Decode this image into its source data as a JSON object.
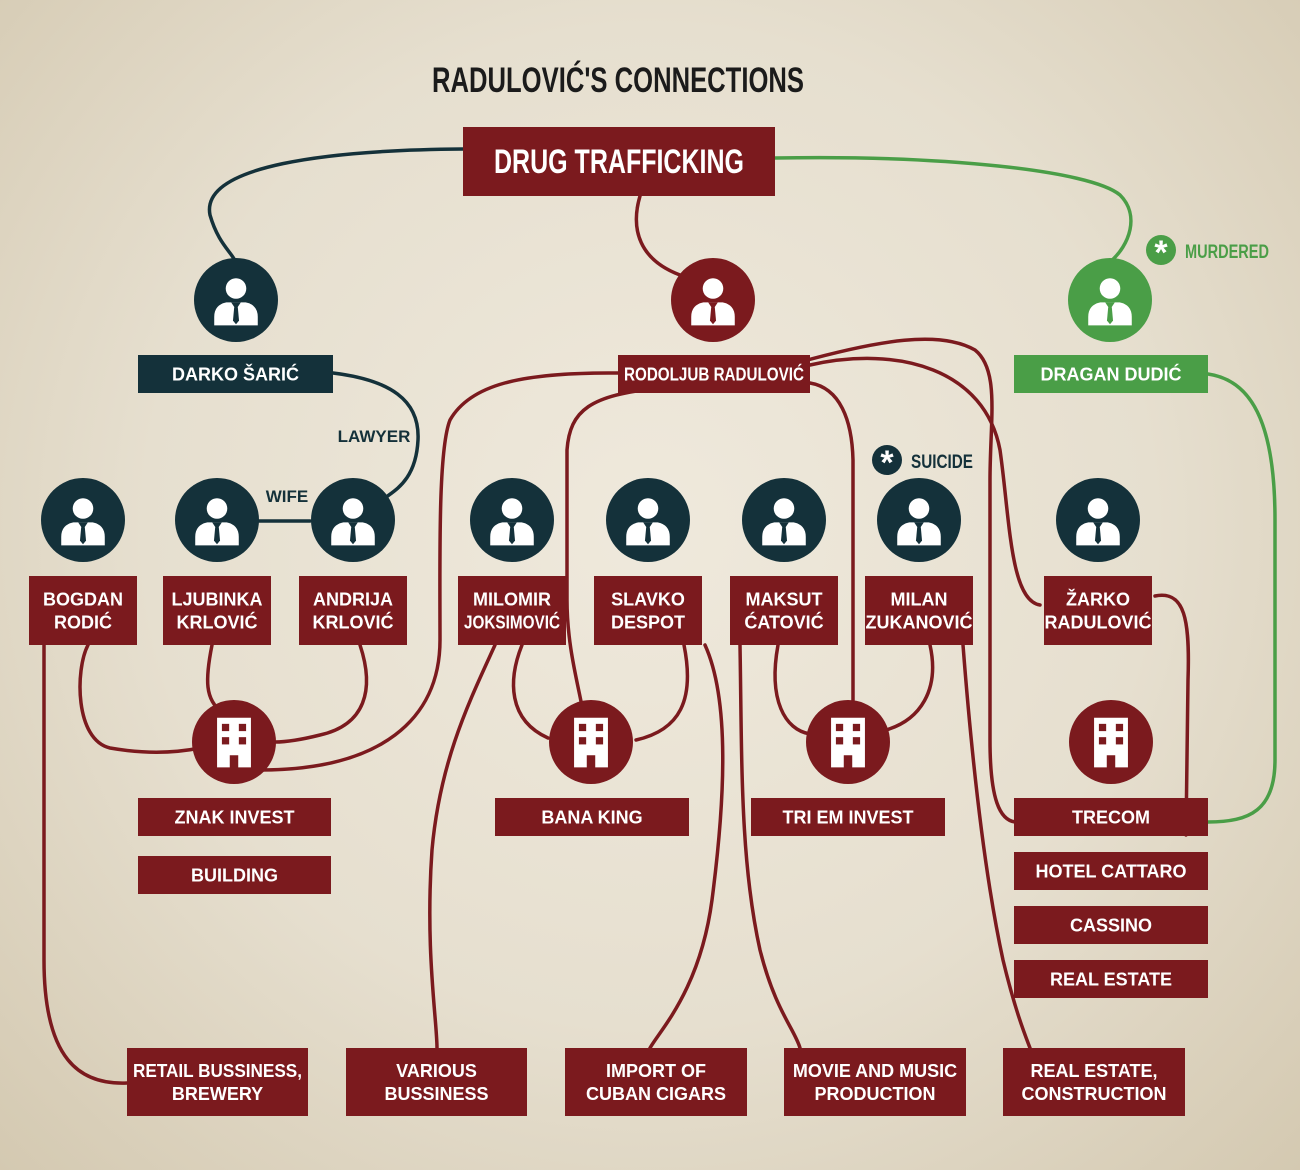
{
  "title": "RADULOVIĆ'S CONNECTIONS",
  "colors": {
    "red": "#7b1a1e",
    "dark": "#14313a",
    "green": "#4a9e47",
    "background": "#ebe5d7"
  },
  "center": {
    "label": "DRUG TRAFFICKING"
  },
  "people": {
    "saric": [
      "DARKO ŠARIĆ"
    ],
    "radulovic": [
      "RODOLJUB RADULOVIĆ"
    ],
    "dudic": [
      "DRAGAN DUDIĆ"
    ],
    "rodic": [
      "BOGDAN",
      "RODIĆ"
    ],
    "ljubinka": [
      "LJUBINKA",
      "KRLOVIĆ"
    ],
    "andrija": [
      "ANDRIJA",
      "KRLOVIĆ"
    ],
    "milomir": [
      "MILOMIR",
      "JOKSIMOVIĆ"
    ],
    "slavko": [
      "SLAVKO",
      "DESPOT"
    ],
    "maksut": [
      "MAKSUT",
      "ĆATOVIĆ"
    ],
    "milan": [
      "MILAN",
      "ZUKANOVIĆ"
    ],
    "zarko": [
      "ŽARKO",
      "RADULOVIĆ"
    ]
  },
  "relations": {
    "lawyer": "LAWYER",
    "wife": "WIFE"
  },
  "status": {
    "murdered": "MURDERED",
    "suicide": "SUICIDE"
  },
  "companies": {
    "znak": [
      "ZNAK INVEST"
    ],
    "building": [
      "BUILDING"
    ],
    "bana": [
      "BANA KING"
    ],
    "triem": [
      "TRI EM INVEST"
    ],
    "trecom": [
      "TRECOM"
    ],
    "cattaro": [
      "HOTEL CATTARO"
    ],
    "cassino": [
      "CASSINO"
    ],
    "realestate": [
      "REAL ESTATE"
    ]
  },
  "businesses": {
    "retail": [
      "RETAIL BUSSINESS,",
      "BREWERY"
    ],
    "various": [
      "VARIOUS",
      "BUSSINESS"
    ],
    "cigars": [
      "IMPORT OF",
      "CUBAN CIGARS"
    ],
    "movie": [
      "MOVIE AND MUSIC",
      "PRODUCTION"
    ],
    "construction": [
      "REAL ESTATE,",
      "CONSTRUCTION"
    ]
  }
}
